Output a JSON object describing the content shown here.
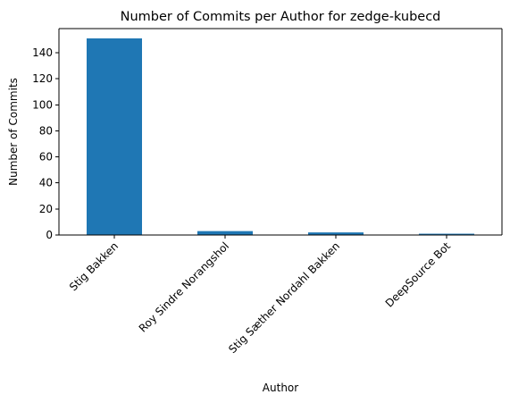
{
  "chart_data": {
    "type": "bar",
    "title": "Number of Commits per Author for zedge-kubecd",
    "xlabel": "Author",
    "ylabel": "Number of Commits",
    "categories": [
      "Stig Bakken",
      "Roy Sindre Norangshol",
      "Stig Sæther Nordahl Bakken",
      "DeepSource Bot"
    ],
    "values": [
      151,
      3,
      2,
      1
    ],
    "ylim": [
      0,
      158.5
    ],
    "yticks": [
      0,
      20,
      40,
      60,
      80,
      100,
      120,
      140
    ],
    "grid": false,
    "legend": "none",
    "colors": {
      "bar": "#1f77b4"
    }
  }
}
